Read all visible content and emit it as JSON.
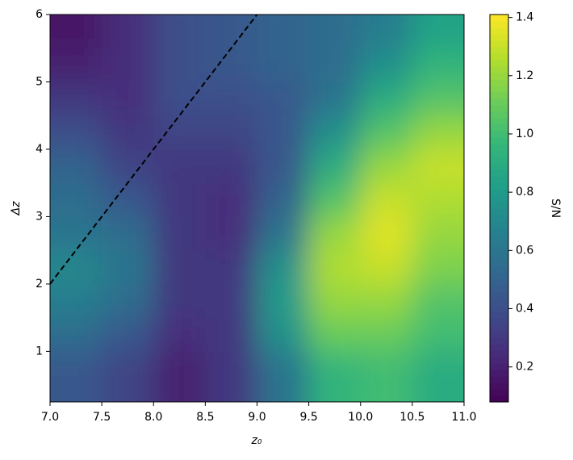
{
  "chart_data": {
    "type": "heatmap",
    "xlabel": "z₀",
    "ylabel": "Δz",
    "colorbar_label": "S/N",
    "x_edges": [
      7.0,
      7.5,
      8.0,
      8.5,
      9.0,
      9.5,
      10.0,
      10.5,
      11.0
    ],
    "y_edges": [
      0.25,
      1,
      1.5,
      2,
      2.5,
      3,
      3.5,
      4,
      4.5,
      5,
      5.5,
      6
    ],
    "z": [
      [
        0.45,
        0.35,
        0.2,
        0.3,
        0.6,
        0.95,
        1.0,
        0.9
      ],
      [
        0.55,
        0.45,
        0.25,
        0.3,
        0.75,
        1.1,
        1.1,
        1.0
      ],
      [
        0.65,
        0.55,
        0.3,
        0.3,
        0.8,
        1.2,
        1.2,
        1.05
      ],
      [
        0.7,
        0.6,
        0.3,
        0.3,
        0.75,
        1.25,
        1.3,
        1.15
      ],
      [
        0.6,
        0.55,
        0.3,
        0.25,
        0.6,
        1.2,
        1.35,
        1.2
      ],
      [
        0.55,
        0.45,
        0.3,
        0.25,
        0.5,
        1.05,
        1.3,
        1.25
      ],
      [
        0.5,
        0.35,
        0.3,
        0.3,
        0.45,
        0.9,
        1.2,
        1.3
      ],
      [
        0.4,
        0.3,
        0.35,
        0.35,
        0.45,
        0.75,
        1.05,
        1.2
      ],
      [
        0.3,
        0.25,
        0.4,
        0.4,
        0.45,
        0.6,
        0.9,
        1.05
      ],
      [
        0.2,
        0.25,
        0.4,
        0.45,
        0.5,
        0.55,
        0.75,
        0.95
      ],
      [
        0.15,
        0.25,
        0.4,
        0.45,
        0.5,
        0.55,
        0.65,
        0.85
      ]
    ],
    "xlim": [
      7.0,
      11.0
    ],
    "ylim": [
      0.25,
      6
    ],
    "xticks": [
      {
        "value": 7,
        "label": "7.0"
      },
      7.5,
      {
        "value": 8,
        "label": "8.0"
      },
      8.5,
      {
        "value": 9,
        "label": "9.0"
      },
      9.5,
      {
        "value": 10,
        "label": "10.0"
      },
      10.5,
      {
        "value": 11,
        "label": "11.0"
      }
    ],
    "yticks": [
      1,
      2,
      3,
      4,
      5,
      6
    ],
    "clim": [
      0.08,
      1.41
    ],
    "cticks": [
      0.2,
      0.4,
      0.6,
      0.8,
      {
        "value": 1,
        "label": "1.0"
      },
      1.2,
      1.4
    ],
    "colormap": "viridis",
    "line": {
      "x": [
        7,
        9
      ],
      "y": [
        2,
        6
      ],
      "color": "#000000"
    }
  }
}
